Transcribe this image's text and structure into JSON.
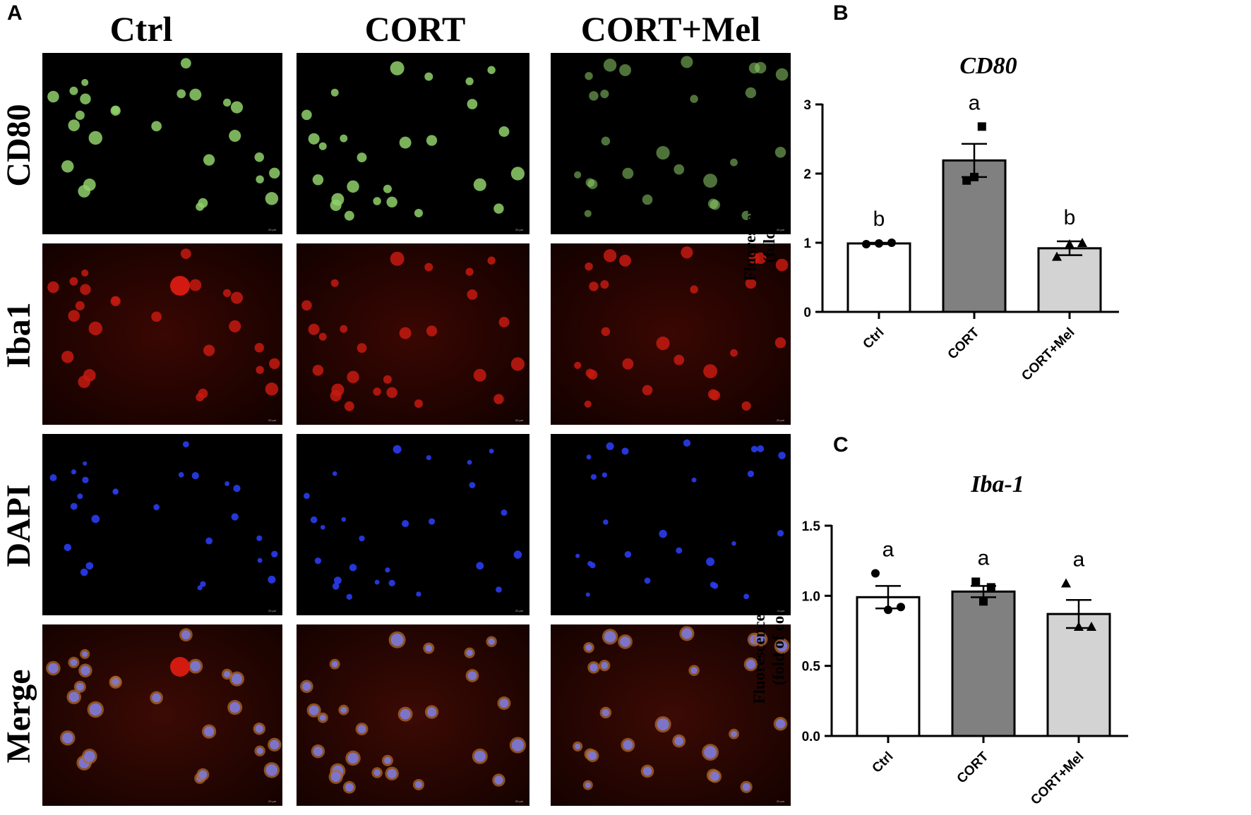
{
  "panels": {
    "A": "A",
    "B": "B",
    "C": "C"
  },
  "micrograph_grid": {
    "columns": [
      "Ctrl",
      "CORT",
      "CORT+Mel"
    ],
    "rows": [
      {
        "label": "CD80",
        "color": "#2e6b2e",
        "cell_color": "#8fd06a",
        "bg": "#000000"
      },
      {
        "label": "Iba1",
        "color": "#b02a1a",
        "cell_color": "#c41a10",
        "bg": "#170200"
      },
      {
        "label": "DAPI",
        "color": "#1c2bd0",
        "cell_color": "#2a3cf0",
        "bg": "#000000"
      },
      {
        "label": "Merge",
        "color": "#000000",
        "cell_color": "#6f6fd8",
        "bg": "#1e0502"
      }
    ],
    "scale_bar_text": "20 μm"
  },
  "chart_data": [
    {
      "type": "bar",
      "title": "CD80",
      "ylabel_lines": [
        "Fluorescence Density",
        "(fold of control)"
      ],
      "categories": [
        "Ctrl",
        "CORT",
        "CORT+Mel"
      ],
      "values": [
        0.99,
        2.19,
        0.92
      ],
      "errors": [
        0.01,
        0.24,
        0.1
      ],
      "points": [
        [
          0.98,
          0.99,
          1.0
        ],
        [
          1.9,
          1.95,
          2.68
        ],
        [
          0.8,
          0.98,
          1.0
        ]
      ],
      "markers": [
        "circle",
        "square",
        "triangle"
      ],
      "bar_colors": [
        "#ffffff",
        "#808080",
        "#d3d3d3"
      ],
      "significance": [
        "b",
        "a",
        "b"
      ],
      "ylim": [
        0,
        3
      ],
      "yticks": [
        0,
        1,
        2,
        3
      ],
      "ytick_labels": [
        "0",
        "1",
        "2",
        "3"
      ]
    },
    {
      "type": "bar",
      "title": "Iba-1",
      "ylabel_lines": [
        "Fluorescence Density",
        "(fold of control)"
      ],
      "categories": [
        "Ctrl",
        "CORT",
        "CORT+Mel"
      ],
      "values": [
        0.99,
        1.03,
        0.87
      ],
      "errors": [
        0.08,
        0.04,
        0.1
      ],
      "points": [
        [
          1.16,
          0.9,
          0.92
        ],
        [
          1.1,
          0.96,
          1.06
        ],
        [
          1.09,
          0.78,
          0.78
        ]
      ],
      "markers": [
        "circle",
        "square",
        "triangle"
      ],
      "bar_colors": [
        "#ffffff",
        "#808080",
        "#d3d3d3"
      ],
      "significance": [
        "a",
        "a",
        "a"
      ],
      "ylim": [
        0,
        1.5
      ],
      "yticks": [
        0,
        0.5,
        1.0,
        1.5
      ],
      "ytick_labels": [
        "0.0",
        "0.5",
        "1.0",
        "1.5"
      ]
    }
  ]
}
